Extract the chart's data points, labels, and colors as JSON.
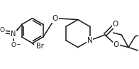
{
  "bg_color": "#ffffff",
  "line_color": "#1a1a1a",
  "line_width": 1.1,
  "font_size": 6.5,
  "figsize": [
    1.96,
    0.97
  ],
  "dpi": 100,
  "xlim": [
    0,
    196
  ],
  "ylim": [
    0,
    97
  ]
}
